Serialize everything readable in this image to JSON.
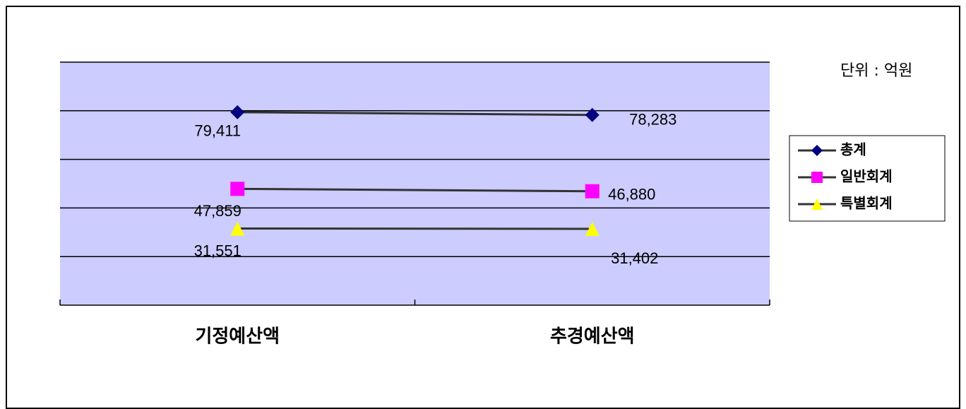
{
  "chart_data": {
    "type": "line",
    "annotations": [
      "단위 : 억원"
    ],
    "categories": [
      "기정예산액",
      "추경예산액"
    ],
    "series": [
      {
        "name": "총계",
        "color": "#000080",
        "marker": "diamond",
        "values": [
          79411,
          78283
        ],
        "value_labels": [
          "79,411",
          "78,283"
        ]
      },
      {
        "name": "일반회계",
        "color": "#ff00ff",
        "marker": "square",
        "values": [
          47859,
          46880
        ],
        "value_labels": [
          "47,859",
          "46,880"
        ]
      },
      {
        "name": "특별회계",
        "color": "#ffff00",
        "marker": "triangle",
        "values": [
          31551,
          31402
        ],
        "value_labels": [
          "31,551",
          "31,402"
        ]
      }
    ],
    "line_color": "#333333",
    "plot_background": "#ccccff",
    "ylim": [
      0,
      100000
    ],
    "yticks": [
      0,
      20000,
      40000,
      60000,
      80000,
      100000
    ],
    "grid": true,
    "legend": "right"
  }
}
